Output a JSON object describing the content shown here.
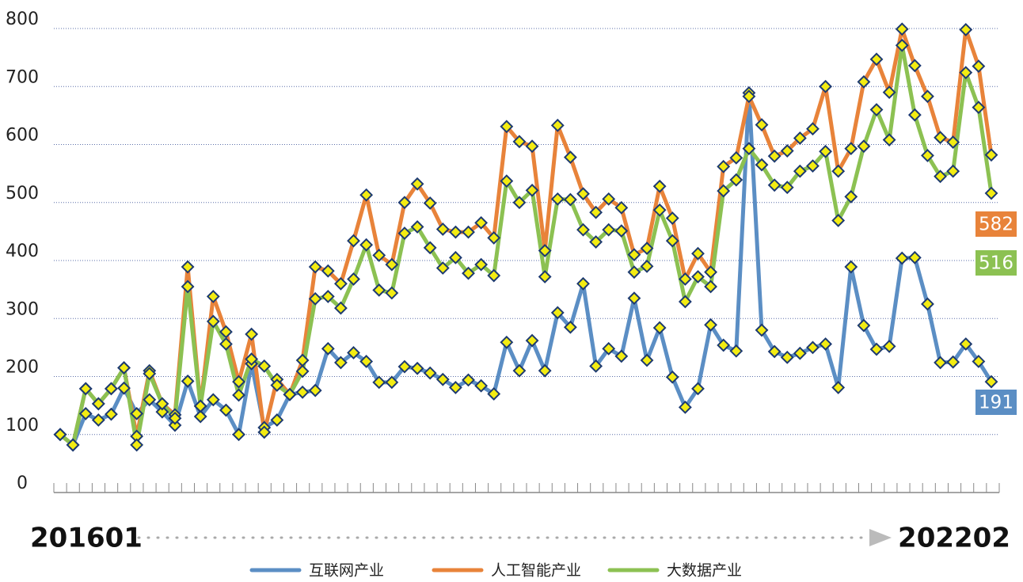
{
  "chart_data": {
    "type": "line",
    "categories": [
      "201601",
      null,
      null,
      null,
      null,
      null,
      null,
      null,
      null,
      null,
      null,
      null,
      null,
      null,
      null,
      null,
      null,
      null,
      null,
      null,
      null,
      null,
      null,
      null,
      null,
      null,
      null,
      null,
      null,
      null,
      null,
      null,
      null,
      null,
      null,
      null,
      null,
      null,
      null,
      null,
      null,
      null,
      null,
      null,
      null,
      null,
      null,
      null,
      null,
      null,
      null,
      null,
      null,
      null,
      null,
      null,
      null,
      null,
      null,
      null,
      null,
      null,
      null,
      null,
      null,
      null,
      null,
      null,
      null,
      null,
      null,
      null,
      null,
      "202202"
    ],
    "series": [
      {
        "name": "互联网产业",
        "color": "#5b8ec4",
        "values": [
          100,
          82,
          136,
          125,
          135,
          180,
          136,
          160,
          139,
          116,
          192,
          131,
          160,
          142,
          100,
          222,
          112,
          125,
          169,
          173,
          176,
          248,
          224,
          241,
          226,
          190,
          190,
          217,
          214,
          206,
          195,
          181,
          194,
          184,
          170,
          259,
          210,
          262,
          210,
          310,
          285,
          360,
          218,
          248,
          235,
          335,
          228,
          284,
          199,
          147,
          179,
          289,
          254,
          244,
          689,
          280,
          243,
          233,
          240,
          250,
          256,
          181,
          389,
          288,
          247,
          252,
          404,
          405,
          325,
          224,
          225,
          256,
          226,
          191
        ]
      },
      {
        "name": "人工智能产业",
        "color": "#e8833a",
        "values": [
          100,
          82,
          179,
          153,
          179,
          215,
          97,
          210,
          153,
          134,
          389,
          149,
          338,
          277,
          191,
          273,
          104,
          195,
          169,
          228,
          389,
          382,
          360,
          434,
          513,
          409,
          393,
          500,
          532,
          499,
          454,
          449,
          449,
          465,
          439,
          631,
          605,
          597,
          417,
          633,
          578,
          515,
          483,
          506,
          491,
          410,
          421,
          528,
          473,
          368,
          412,
          380,
          562,
          577,
          683,
          634,
          580,
          589,
          611,
          627,
          700,
          554,
          593,
          708,
          747,
          690,
          799,
          736,
          683,
          612,
          604,
          798,
          735,
          582
        ]
      },
      {
        "name": "大数据产业",
        "color": "#8cc152",
        "values": [
          100,
          82,
          179,
          153,
          179,
          215,
          82,
          205,
          153,
          128,
          355,
          149,
          295,
          256,
          168,
          230,
          218,
          185,
          169,
          209,
          334,
          338,
          318,
          368,
          427,
          349,
          344,
          447,
          458,
          422,
          387,
          405,
          378,
          393,
          374,
          537,
          500,
          521,
          372,
          506,
          505,
          453,
          432,
          453,
          451,
          380,
          390,
          487,
          434,
          329,
          372,
          355,
          520,
          539,
          593,
          565,
          530,
          526,
          554,
          563,
          588,
          469,
          510,
          597,
          660,
          608,
          771,
          651,
          581,
          545,
          554,
          724,
          664,
          516
        ]
      }
    ],
    "ylim": [
      0,
      800
    ],
    "yticks": [
      0,
      100,
      200,
      300,
      400,
      500,
      600,
      700,
      800
    ],
    "grid": true,
    "legend": "bottom"
  }
}
